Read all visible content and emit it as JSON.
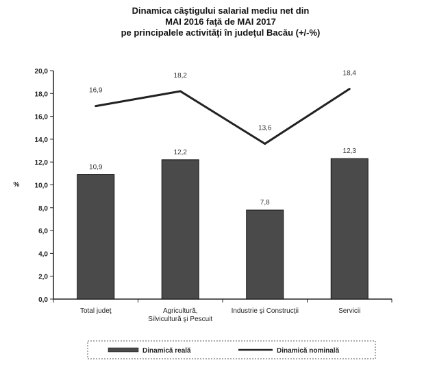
{
  "chart_data": {
    "type": "bar",
    "title": [
      "Dinamica câştigului salarial mediu net din",
      "MAI 2016 faţă de MAI 2017",
      "pe principalele activităţi în judeţul Bacău (+/-%)"
    ],
    "ylabel": "%",
    "ylim": [
      0,
      20
    ],
    "yticks": [
      "0,0",
      "2,0",
      "4,0",
      "6,0",
      "8,0",
      "10,0",
      "12,0",
      "14,0",
      "16,0",
      "18,0",
      "20,0"
    ],
    "categories": [
      [
        "Total judeţ"
      ],
      [
        "Agricultură,",
        "Silvicultură şi Pescuit"
      ],
      [
        "Industrie şi Construcţii"
      ],
      [
        "Servicii"
      ]
    ],
    "series": [
      {
        "name": "Dinamică reală",
        "type": "bar",
        "values": [
          10.9,
          12.2,
          7.8,
          12.3
        ],
        "labels": [
          "10,9",
          "12,2",
          "7,8",
          "12,3"
        ],
        "color": "#4a4a4a"
      },
      {
        "name": "Dinamică nominală",
        "type": "line",
        "values": [
          16.9,
          18.2,
          13.6,
          18.4
        ],
        "labels": [
          "16,9",
          "18,2",
          "13,6",
          "18,4"
        ],
        "color": "#222222"
      }
    ],
    "grid": false,
    "legend_position": "bottom"
  }
}
